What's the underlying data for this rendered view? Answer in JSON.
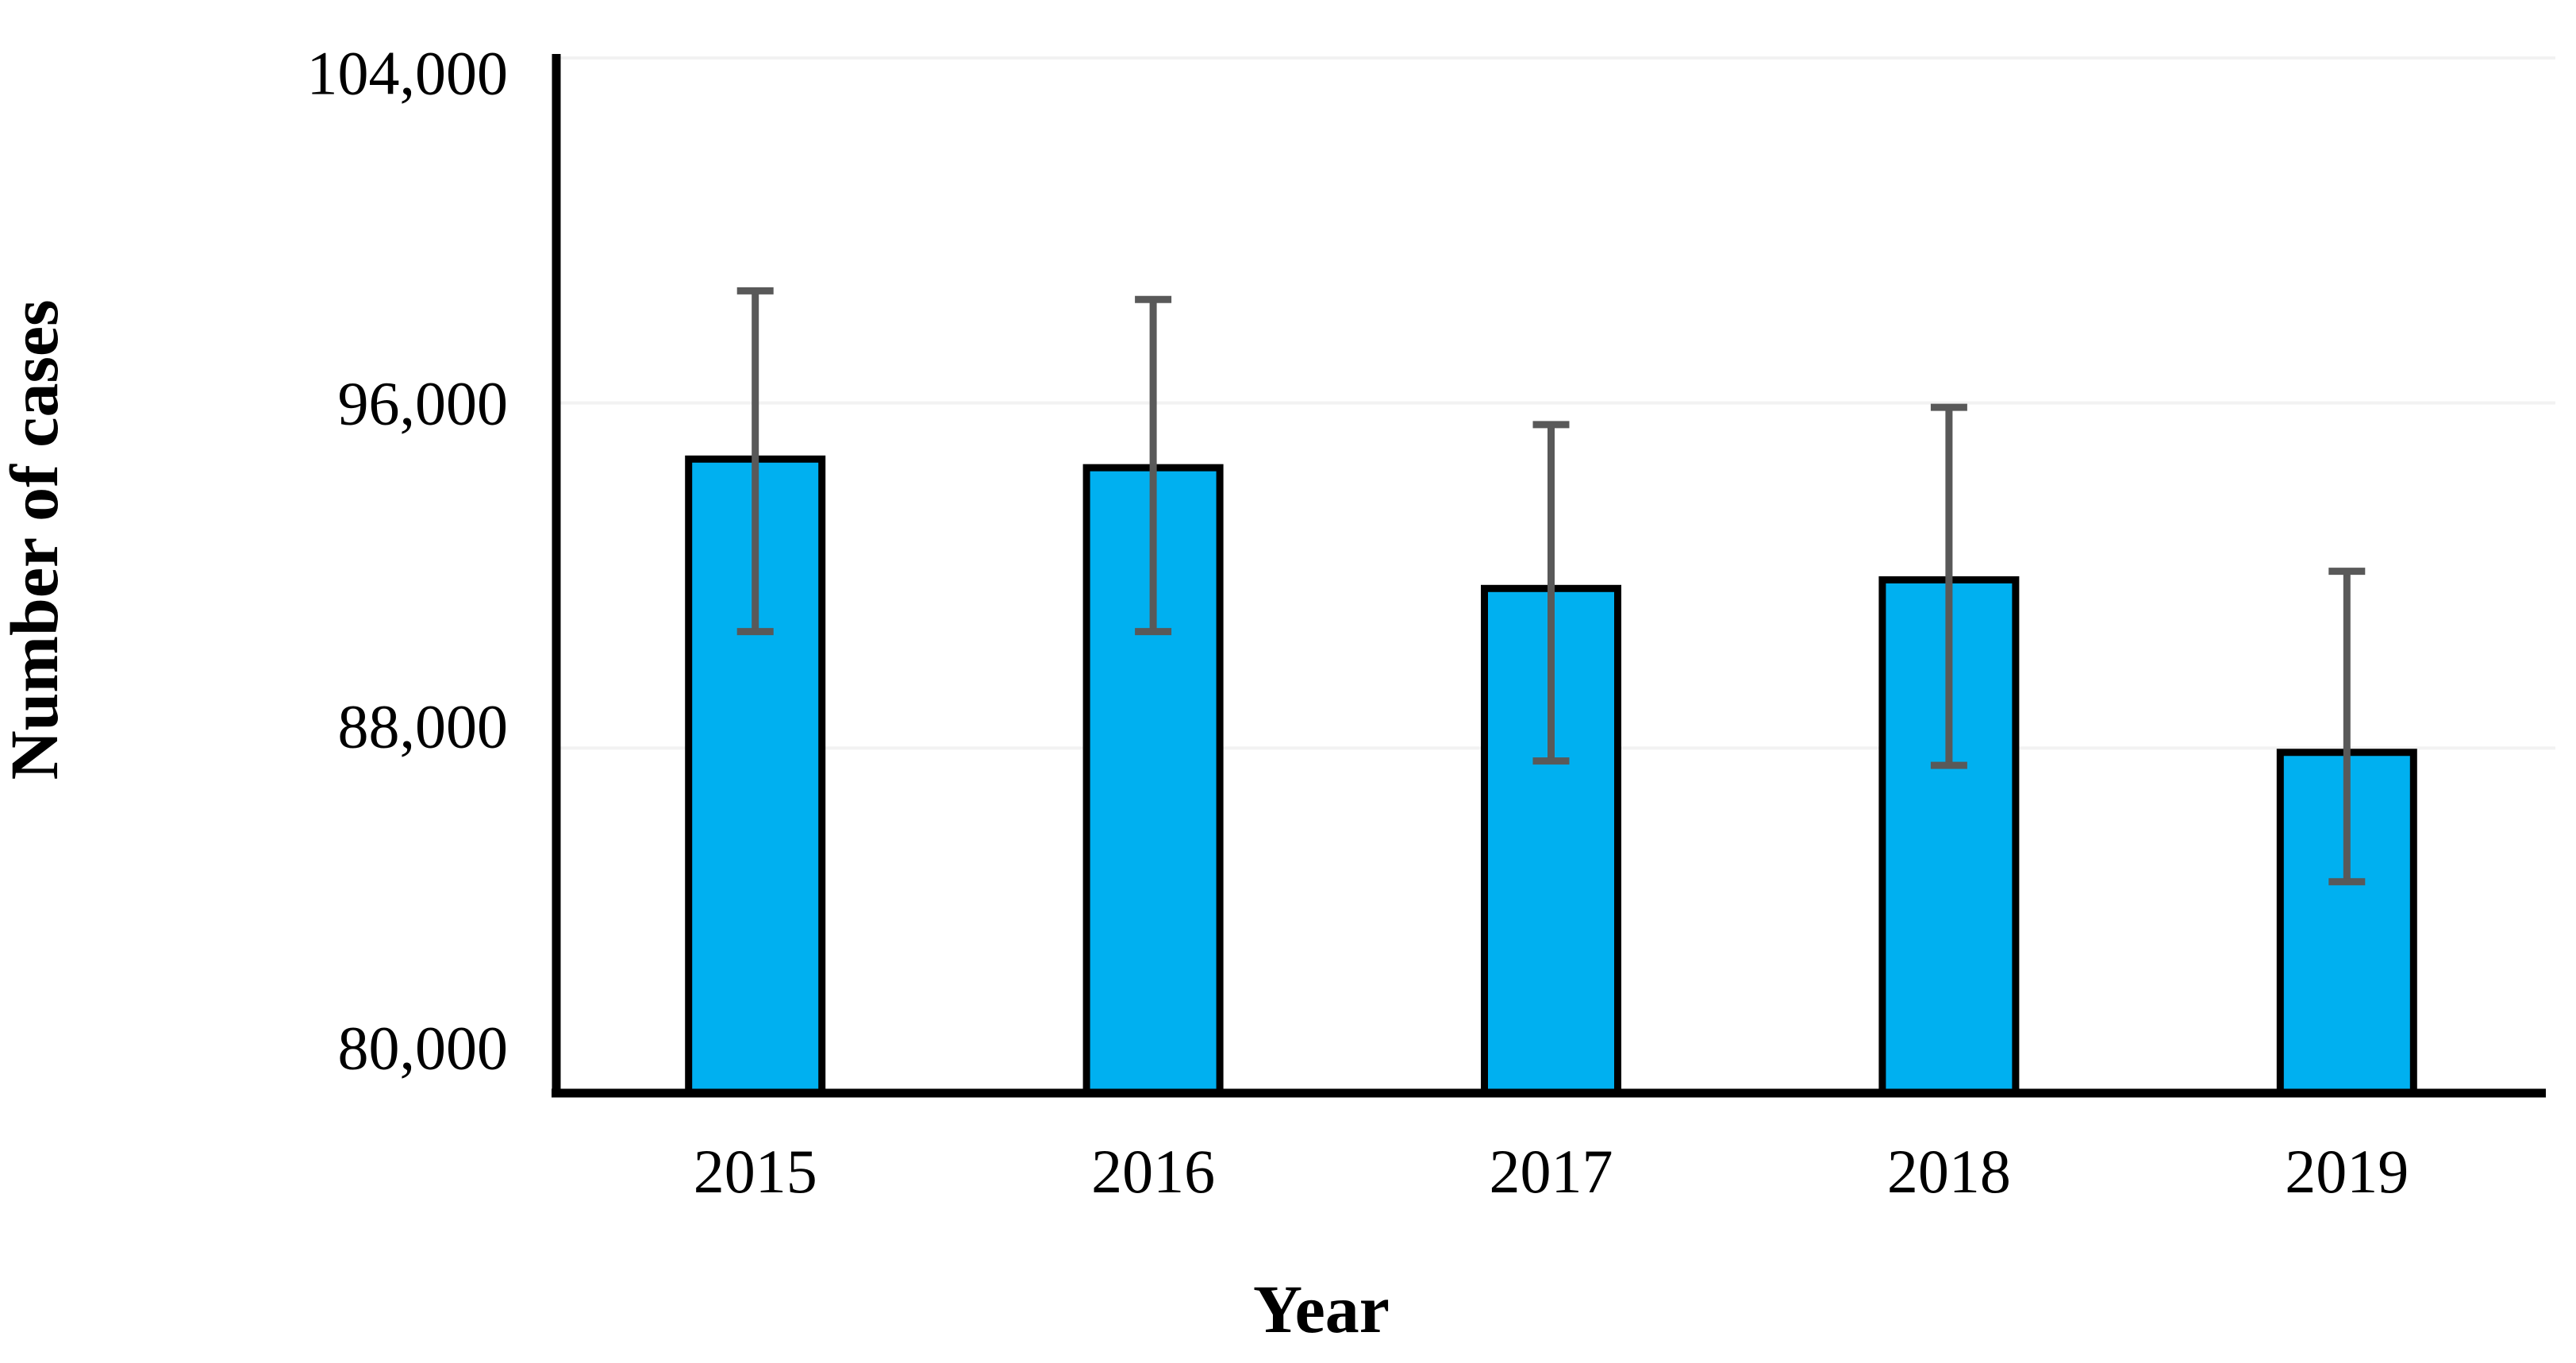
{
  "figure": {
    "background": "#FFFFFF"
  },
  "chart_data": {
    "type": "bar",
    "title": "",
    "xlabel": "Year",
    "ylabel": "Number of cases",
    "categories": [
      "2015",
      "2016",
      "2017",
      "2018",
      "2019"
    ],
    "values": [
      94700,
      94500,
      91700,
      91900,
      87900
    ],
    "error_low": [
      90700,
      90700,
      87700,
      87600,
      84900
    ],
    "error_high": [
      98600,
      98400,
      95500,
      95900,
      92100
    ],
    "ylim": [
      80000,
      104000
    ],
    "yticks": [
      80000,
      88000,
      96000,
      104000
    ],
    "ytick_labels": [
      "80,000",
      "88,000",
      "96,000",
      "104,000"
    ],
    "xtick_labels": [
      "2015",
      "2016",
      "2017",
      "2018",
      "2019"
    ],
    "grid": "horizontal-major",
    "legend": "none",
    "colors": {
      "bar_fill": "#00B0F0",
      "bar_border": "#000000",
      "error_bar": "#595959",
      "gridline": "#F2F2F2",
      "axis_line": "#000000",
      "text": "#000000"
    }
  }
}
